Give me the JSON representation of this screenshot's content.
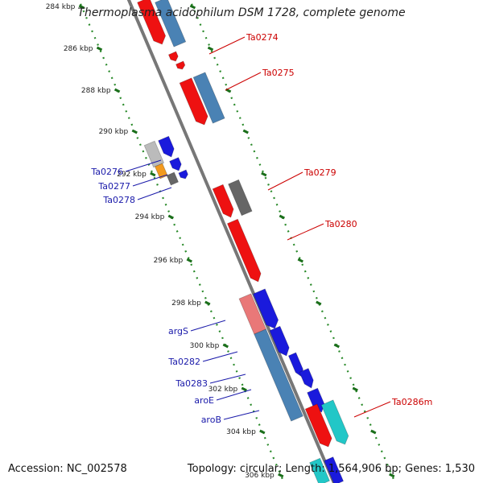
{
  "title": "Thermoplasma acidophilum DSM 1728, complete genome",
  "footer": {
    "accession": "Accession: NC_002578",
    "topology": "Topology: circular; Length: 1,564,906 bp; Genes: 1,530"
  },
  "ticks": [
    "284 kbp",
    "286 kbp",
    "288 kbp",
    "290 kbp",
    "292 kbp",
    "294 kbp",
    "296 kbp",
    "298 kbp",
    "300 kbp",
    "302 kbp",
    "304 kbp",
    "306 kbp"
  ],
  "labels_left": [
    "Ta0276",
    "Ta0277",
    "Ta0278",
    "argS",
    "Ta0282",
    "Ta0283",
    "aroE",
    "aroB"
  ],
  "labels_right": [
    "Ta0274",
    "Ta0275",
    "Ta0279",
    "Ta0280",
    "Ta0286m"
  ],
  "colors": {
    "backbone": "#777777",
    "tick_track": "#2a8a2a",
    "red": "#ee1111",
    "blue": "#1a1adc",
    "steel": "#4a82b4",
    "grey": "#666666",
    "light_grey": "#bbbbbb",
    "orange": "#f39a1e",
    "pink": "#e97878",
    "cyan": "#22c7c7",
    "label_blue": "#1a1aaa",
    "label_red": "#cc0000"
  }
}
